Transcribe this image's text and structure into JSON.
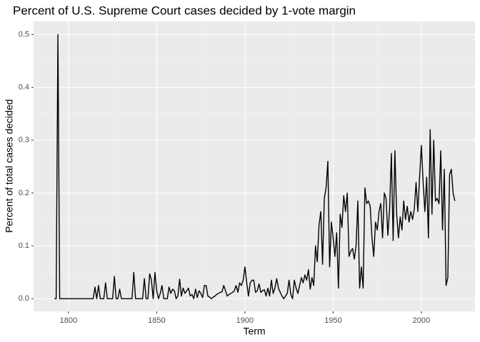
{
  "chart_data": {
    "type": "line",
    "title": "Percent of U.S. Supreme Court cases decided by 1-vote margin",
    "x_label": "Term",
    "y_label": "Percent of total cases decided",
    "x": [
      1792,
      1793,
      1794,
      1795,
      1796,
      1797,
      1798,
      1799,
      1800,
      1801,
      1802,
      1803,
      1804,
      1805,
      1806,
      1807,
      1808,
      1809,
      1810,
      1811,
      1812,
      1813,
      1814,
      1815,
      1816,
      1817,
      1818,
      1819,
      1820,
      1821,
      1822,
      1823,
      1824,
      1825,
      1826,
      1827,
      1828,
      1829,
      1830,
      1831,
      1832,
      1833,
      1834,
      1835,
      1836,
      1837,
      1838,
      1839,
      1840,
      1841,
      1842,
      1843,
      1844,
      1845,
      1846,
      1847,
      1848,
      1849,
      1850,
      1851,
      1852,
      1853,
      1854,
      1855,
      1856,
      1857,
      1858,
      1859,
      1860,
      1861,
      1862,
      1863,
      1864,
      1865,
      1866,
      1867,
      1868,
      1869,
      1870,
      1871,
      1872,
      1873,
      1874,
      1875,
      1876,
      1877,
      1878,
      1879,
      1880,
      1881,
      1882,
      1883,
      1884,
      1885,
      1886,
      1887,
      1888,
      1889,
      1890,
      1891,
      1892,
      1893,
      1894,
      1895,
      1896,
      1897,
      1898,
      1899,
      1900,
      1901,
      1902,
      1903,
      1904,
      1905,
      1906,
      1907,
      1908,
      1909,
      1910,
      1911,
      1912,
      1913,
      1914,
      1915,
      1916,
      1917,
      1918,
      1919,
      1920,
      1921,
      1922,
      1923,
      1924,
      1925,
      1926,
      1927,
      1928,
      1929,
      1930,
      1931,
      1932,
      1933,
      1934,
      1935,
      1936,
      1937,
      1938,
      1939,
      1940,
      1941,
      1942,
      1943,
      1944,
      1945,
      1946,
      1947,
      1948,
      1949,
      1950,
      1951,
      1952,
      1953,
      1954,
      1955,
      1956,
      1957,
      1958,
      1959,
      1960,
      1961,
      1962,
      1963,
      1964,
      1965,
      1966,
      1967,
      1968,
      1969,
      1970,
      1971,
      1972,
      1973,
      1974,
      1975,
      1976,
      1977,
      1978,
      1979,
      1980,
      1981,
      1982,
      1983,
      1984,
      1985,
      1986,
      1987,
      1988,
      1989,
      1990,
      1991,
      1992,
      1993,
      1994,
      1995,
      1996,
      1997,
      1998,
      1999,
      2000,
      2001,
      2002,
      2003,
      2004,
      2005,
      2006,
      2007,
      2008,
      2009,
      2010,
      2011,
      2012,
      2013,
      2014,
      2015,
      2016,
      2017,
      2018,
      2019
    ],
    "values": [
      0,
      0,
      0.5,
      0,
      0,
      0,
      0,
      0,
      0,
      0,
      0,
      0,
      0,
      0,
      0,
      0,
      0,
      0,
      0,
      0,
      0,
      0,
      0,
      0.022,
      0,
      0.025,
      0,
      0,
      0,
      0.03,
      0,
      0,
      0,
      0,
      0.042,
      0,
      0,
      0.018,
      0,
      0,
      0,
      0,
      0,
      0,
      0,
      0.05,
      0,
      0,
      0,
      0,
      0,
      0.038,
      0,
      0,
      0.047,
      0.035,
      0,
      0.05,
      0.015,
      0,
      0.01,
      0.025,
      0,
      0,
      0,
      0.022,
      0.01,
      0.018,
      0.015,
      0,
      0.005,
      0.037,
      0.005,
      0.02,
      0.01,
      0.015,
      0.02,
      0.005,
      0.008,
      0,
      0.018,
      0.002,
      0.015,
      0.01,
      0.002,
      0.025,
      0.025,
      0.005,
      0.003,
      0,
      0.003,
      0.005,
      0.008,
      0.01,
      0.012,
      0.013,
      0.025,
      0.015,
      0.005,
      0.008,
      0.01,
      0.012,
      0.015,
      0.025,
      0.012,
      0.03,
      0.025,
      0.035,
      0.06,
      0.03,
      0.005,
      0.03,
      0.035,
      0.035,
      0.012,
      0.015,
      0.028,
      0.012,
      0.015,
      0.017,
      0.005,
      0.02,
      0.005,
      0.035,
      0.01,
      0.02,
      0.038,
      0.02,
      0.012,
      0.005,
      0,
      0.005,
      0.01,
      0.035,
      0.008,
      0,
      0.035,
      0.02,
      0.01,
      0.025,
      0.04,
      0.03,
      0.045,
      0.035,
      0.055,
      0.018,
      0.04,
      0.025,
      0.1,
      0.07,
      0.14,
      0.165,
      0.065,
      0.19,
      0.21,
      0.26,
      0.06,
      0.145,
      0.115,
      0.08,
      0.125,
      0.02,
      0.16,
      0.135,
      0.195,
      0.165,
      0.2,
      0.08,
      0.09,
      0.095,
      0.075,
      0.1,
      0.185,
      0.02,
      0.06,
      0.02,
      0.21,
      0.18,
      0.185,
      0.175,
      0.115,
      0.08,
      0.145,
      0.13,
      0.165,
      0.18,
      0.115,
      0.2,
      0.19,
      0.12,
      0.17,
      0.275,
      0.11,
      0.28,
      0.16,
      0.115,
      0.155,
      0.13,
      0.185,
      0.15,
      0.175,
      0.145,
      0.165,
      0.15,
      0.17,
      0.22,
      0.165,
      0.23,
      0.29,
      0.22,
      0.165,
      0.23,
      0.115,
      0.32,
      0.16,
      0.3,
      0.185,
      0.19,
      0.18,
      0.28,
      0.13,
      0.245,
      0.025,
      0.04,
      0.235,
      0.245,
      0.2,
      0.185
    ],
    "color": "#000000",
    "xlim": [
      1780.2,
      2030.4
    ],
    "xticks": [
      1800,
      1850,
      1900,
      1950,
      2000
    ],
    "ylim": [
      -0.024,
      0.525
    ],
    "yticks": [
      {
        "value": 0,
        "label": "0.0"
      },
      0.1,
      0.2,
      0.3,
      0.4,
      0.5
    ],
    "grid": true
  }
}
